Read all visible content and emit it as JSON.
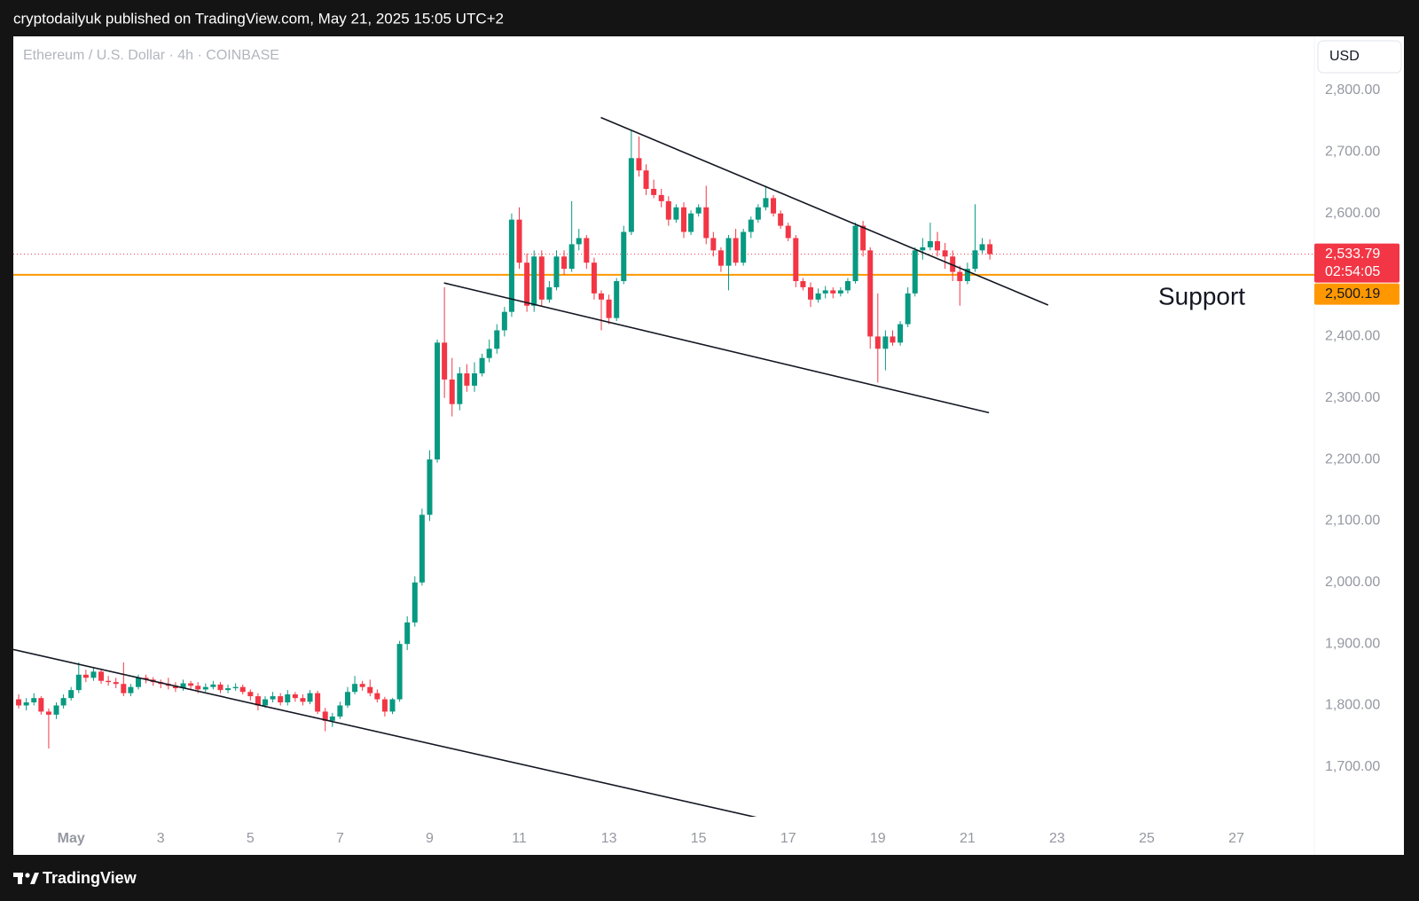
{
  "header": {
    "text": "cryptodailyuk published on TradingView.com, May 21, 2025 15:05 UTC+2"
  },
  "chart_data": {
    "type": "candlestick",
    "title": "Ethereum / U.S. Dollar · 4h · COINBASE",
    "currency": "USD",
    "up_color": "#089981",
    "down_color": "#f23645",
    "grid": false,
    "xlim": [
      -0.29,
      28.74
    ],
    "xticks": [
      {
        "value": 1,
        "label": "May"
      },
      3,
      5,
      7,
      9,
      11,
      13,
      15,
      17,
      19,
      21,
      23,
      25,
      27
    ],
    "ylim": [
      1557,
      2888
    ],
    "yticks": [
      {
        "value": 1700,
        "label": "1,700.00"
      },
      {
        "value": 1800,
        "label": "1,800.00"
      },
      {
        "value": 1900,
        "label": "1,900.00"
      },
      {
        "value": 2000,
        "label": "2,000.00"
      },
      {
        "value": 2100,
        "label": "2,100.00"
      },
      {
        "value": 2200,
        "label": "2,200.00"
      },
      {
        "value": 2300,
        "label": "2,300.00"
      },
      {
        "value": 2400,
        "label": "2,400.00"
      },
      {
        "value": 2500,
        "label": "2,500.00"
      },
      {
        "value": 2600,
        "label": "2,600.00"
      },
      {
        "value": 2700,
        "label": "2,700.00"
      },
      {
        "value": 2800,
        "label": "2,800.00"
      }
    ],
    "x": [
      -0.17,
      0,
      0.17,
      0.33,
      0.5,
      0.67,
      0.83,
      1,
      1.17,
      1.33,
      1.5,
      1.67,
      1.83,
      2,
      2.17,
      2.33,
      2.5,
      2.67,
      2.83,
      3,
      3.17,
      3.33,
      3.5,
      3.67,
      3.83,
      4,
      4.17,
      4.33,
      4.5,
      4.67,
      4.83,
      5,
      5.17,
      5.33,
      5.5,
      5.67,
      5.83,
      6,
      6.17,
      6.33,
      6.5,
      6.67,
      6.83,
      7,
      7.17,
      7.33,
      7.5,
      7.67,
      7.83,
      8,
      8.17,
      8.33,
      8.5,
      8.67,
      8.83,
      9,
      9.17,
      9.33,
      9.5,
      9.67,
      9.83,
      10,
      10.17,
      10.33,
      10.5,
      10.67,
      10.83,
      11,
      11.17,
      11.33,
      11.5,
      11.67,
      11.83,
      12,
      12.17,
      12.33,
      12.5,
      12.67,
      12.83,
      13,
      13.17,
      13.33,
      13.5,
      13.67,
      13.83,
      14,
      14.17,
      14.33,
      14.5,
      14.67,
      14.83,
      15,
      15.17,
      15.33,
      15.5,
      15.67,
      15.83,
      16,
      16.17,
      16.33,
      16.5,
      16.67,
      16.83,
      17,
      17.17,
      17.33,
      17.5,
      17.67,
      17.83,
      18,
      18.17,
      18.33,
      18.5,
      18.67,
      18.83,
      19,
      19.17,
      19.33,
      19.5,
      19.67,
      19.83,
      20,
      20.17,
      20.33,
      20.5,
      20.67,
      20.83,
      21,
      21.17,
      21.33,
      21.5
    ],
    "candles": [
      [
        1810,
        1818,
        1795,
        1800
      ],
      [
        1800,
        1812,
        1792,
        1805
      ],
      [
        1805,
        1820,
        1800,
        1812
      ],
      [
        1812,
        1815,
        1785,
        1790
      ],
      [
        1790,
        1795,
        1730,
        1785
      ],
      [
        1785,
        1805,
        1778,
        1800
      ],
      [
        1800,
        1818,
        1795,
        1812
      ],
      [
        1812,
        1830,
        1808,
        1825
      ],
      [
        1825,
        1870,
        1820,
        1850
      ],
      [
        1850,
        1858,
        1838,
        1845
      ],
      [
        1845,
        1862,
        1840,
        1855
      ],
      [
        1855,
        1860,
        1835,
        1840
      ],
      [
        1840,
        1848,
        1832,
        1838
      ],
      [
        1838,
        1845,
        1828,
        1835
      ],
      [
        1835,
        1870,
        1815,
        1820
      ],
      [
        1820,
        1835,
        1815,
        1830
      ],
      [
        1830,
        1850,
        1826,
        1845
      ],
      [
        1845,
        1850,
        1836,
        1842
      ],
      [
        1842,
        1846,
        1832,
        1838
      ],
      [
        1838,
        1842,
        1828,
        1835
      ],
      [
        1835,
        1845,
        1826,
        1832
      ],
      [
        1832,
        1838,
        1822,
        1828
      ],
      [
        1828,
        1842,
        1824,
        1836
      ],
      [
        1836,
        1840,
        1826,
        1832
      ],
      [
        1832,
        1838,
        1820,
        1826
      ],
      [
        1826,
        1836,
        1822,
        1830
      ],
      [
        1830,
        1840,
        1826,
        1834
      ],
      [
        1834,
        1838,
        1820,
        1825
      ],
      [
        1825,
        1834,
        1820,
        1828
      ],
      [
        1828,
        1836,
        1824,
        1830
      ],
      [
        1830,
        1834,
        1818,
        1822
      ],
      [
        1822,
        1826,
        1808,
        1815
      ],
      [
        1815,
        1820,
        1792,
        1800
      ],
      [
        1800,
        1815,
        1796,
        1810
      ],
      [
        1810,
        1822,
        1805,
        1815
      ],
      [
        1815,
        1820,
        1800,
        1805
      ],
      [
        1805,
        1825,
        1800,
        1818
      ],
      [
        1818,
        1822,
        1806,
        1812
      ],
      [
        1812,
        1818,
        1800,
        1806
      ],
      [
        1806,
        1825,
        1802,
        1820
      ],
      [
        1820,
        1824,
        1786,
        1790
      ],
      [
        1790,
        1796,
        1758,
        1775
      ],
      [
        1775,
        1788,
        1765,
        1782
      ],
      [
        1782,
        1806,
        1778,
        1800
      ],
      [
        1800,
        1830,
        1796,
        1822
      ],
      [
        1822,
        1848,
        1818,
        1835
      ],
      [
        1835,
        1840,
        1824,
        1830
      ],
      [
        1830,
        1842,
        1815,
        1820
      ],
      [
        1820,
        1826,
        1805,
        1810
      ],
      [
        1810,
        1814,
        1782,
        1790
      ],
      [
        1790,
        1812,
        1786,
        1810
      ],
      [
        1810,
        1905,
        1806,
        1900
      ],
      [
        1900,
        1945,
        1890,
        1935
      ],
      [
        1935,
        2010,
        1928,
        2000
      ],
      [
        2000,
        2120,
        1995,
        2110
      ],
      [
        2110,
        2215,
        2100,
        2200
      ],
      [
        2200,
        2395,
        2195,
        2390
      ],
      [
        2390,
        2480,
        2300,
        2330
      ],
      [
        2330,
        2365,
        2270,
        2290
      ],
      [
        2290,
        2350,
        2280,
        2340
      ],
      [
        2340,
        2355,
        2310,
        2320
      ],
      [
        2320,
        2358,
        2310,
        2340
      ],
      [
        2340,
        2372,
        2335,
        2365
      ],
      [
        2365,
        2395,
        2358,
        2380
      ],
      [
        2380,
        2420,
        2372,
        2410
      ],
      [
        2410,
        2448,
        2400,
        2440
      ],
      [
        2440,
        2600,
        2432,
        2590
      ],
      [
        2590,
        2610,
        2510,
        2520
      ],
      [
        2520,
        2535,
        2440,
        2450
      ],
      [
        2450,
        2540,
        2440,
        2530
      ],
      [
        2530,
        2540,
        2450,
        2460
      ],
      [
        2460,
        2490,
        2455,
        2480
      ],
      [
        2480,
        2540,
        2475,
        2530
      ],
      [
        2530,
        2540,
        2500,
        2510
      ],
      [
        2510,
        2620,
        2505,
        2550
      ],
      [
        2550,
        2575,
        2540,
        2560
      ],
      [
        2560,
        2565,
        2510,
        2520
      ],
      [
        2520,
        2528,
        2460,
        2470
      ],
      [
        2470,
        2475,
        2410,
        2460
      ],
      [
        2460,
        2468,
        2420,
        2430
      ],
      [
        2430,
        2495,
        2425,
        2490
      ],
      [
        2490,
        2580,
        2485,
        2570
      ],
      [
        2570,
        2735,
        2565,
        2690
      ],
      [
        2690,
        2725,
        2660,
        2670
      ],
      [
        2670,
        2680,
        2630,
        2640
      ],
      [
        2640,
        2655,
        2625,
        2630
      ],
      [
        2630,
        2640,
        2610,
        2620
      ],
      [
        2620,
        2628,
        2580,
        2590
      ],
      [
        2590,
        2615,
        2585,
        2610
      ],
      [
        2610,
        2618,
        2560,
        2570
      ],
      [
        2570,
        2605,
        2565,
        2600
      ],
      [
        2600,
        2615,
        2595,
        2610
      ],
      [
        2610,
        2645,
        2550,
        2560
      ],
      [
        2560,
        2570,
        2530,
        2540
      ],
      [
        2540,
        2545,
        2505,
        2515
      ],
      [
        2515,
        2565,
        2475,
        2560
      ],
      [
        2560,
        2575,
        2515,
        2520
      ],
      [
        2520,
        2575,
        2515,
        2570
      ],
      [
        2570,
        2595,
        2560,
        2590
      ],
      [
        2590,
        2615,
        2585,
        2610
      ],
      [
        2610,
        2645,
        2605,
        2625
      ],
      [
        2625,
        2630,
        2595,
        2600
      ],
      [
        2600,
        2605,
        2575,
        2580
      ],
      [
        2580,
        2585,
        2555,
        2560
      ],
      [
        2560,
        2565,
        2480,
        2490
      ],
      [
        2490,
        2495,
        2475,
        2480
      ],
      [
        2480,
        2488,
        2448,
        2460
      ],
      [
        2460,
        2478,
        2455,
        2470
      ],
      [
        2470,
        2482,
        2462,
        2475
      ],
      [
        2475,
        2480,
        2462,
        2470
      ],
      [
        2470,
        2480,
        2465,
        2475
      ],
      [
        2475,
        2495,
        2470,
        2490
      ],
      [
        2490,
        2585,
        2486,
        2580
      ],
      [
        2580,
        2588,
        2530,
        2540
      ],
      [
        2540,
        2545,
        2380,
        2400
      ],
      [
        2400,
        2470,
        2325,
        2380
      ],
      [
        2380,
        2410,
        2345,
        2400
      ],
      [
        2400,
        2410,
        2385,
        2390
      ],
      [
        2390,
        2425,
        2385,
        2420
      ],
      [
        2420,
        2480,
        2415,
        2470
      ],
      [
        2470,
        2545,
        2465,
        2540
      ],
      [
        2540,
        2560,
        2525,
        2545
      ],
      [
        2545,
        2585,
        2540,
        2555
      ],
      [
        2555,
        2570,
        2530,
        2540
      ],
      [
        2540,
        2552,
        2510,
        2530
      ],
      [
        2530,
        2540,
        2490,
        2505
      ],
      [
        2505,
        2515,
        2450,
        2490
      ],
      [
        2490,
        2520,
        2485,
        2510
      ],
      [
        2510,
        2615,
        2505,
        2540
      ],
      [
        2540,
        2560,
        2535,
        2550
      ],
      [
        2550,
        2558,
        2525,
        2533.79
      ]
    ],
    "trendlines": [
      {
        "x": [
          -0.29,
          16.41
        ],
        "y": [
          1891,
          1616
        ]
      },
      {
        "x": [
          9.32,
          21.48
        ],
        "y": [
          2487,
          2276
        ]
      },
      {
        "x": [
          12.82,
          22.8
        ],
        "y": [
          2756,
          2451
        ]
      }
    ],
    "trendline_color": "#131722",
    "support": {
      "value": 2500.19,
      "label": "2,500.19",
      "name": "Support",
      "color": "#ff9800"
    },
    "last_price": {
      "value": 2533.79,
      "label": "2,533.79",
      "countdown": "02:54:05",
      "color": "#f23645"
    }
  },
  "footer": {
    "brand": "TradingView"
  }
}
